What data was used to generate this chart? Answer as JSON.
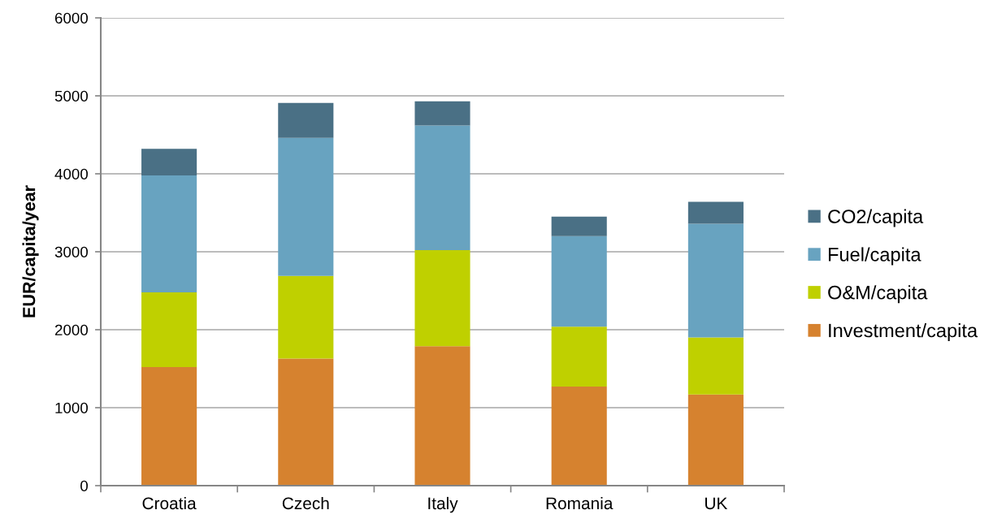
{
  "chart_data": {
    "type": "bar",
    "stacked": true,
    "ylabel": "EUR/capita/year",
    "categories": [
      "Croatia",
      "Czech",
      "Italy",
      "Romania",
      "UK"
    ],
    "series": [
      {
        "name": "Investment/capita",
        "color": "#d6822f",
        "values": [
          1520,
          1630,
          1790,
          1270,
          1170
        ]
      },
      {
        "name": "O&M/capita",
        "color": "#bfd000",
        "values": [
          960,
          1060,
          1230,
          770,
          730
        ]
      },
      {
        "name": "Fuel/capita",
        "color": "#68a3c0",
        "values": [
          1500,
          1770,
          1600,
          1160,
          1460
        ]
      },
      {
        "name": "CO2/capita",
        "color": "#4a7085",
        "values": [
          340,
          450,
          310,
          250,
          280
        ]
      }
    ],
    "ylim": [
      0,
      6000
    ],
    "yticks": [
      0,
      1000,
      2000,
      3000,
      4000,
      5000,
      6000
    ],
    "grid": "y",
    "legend": "right"
  }
}
